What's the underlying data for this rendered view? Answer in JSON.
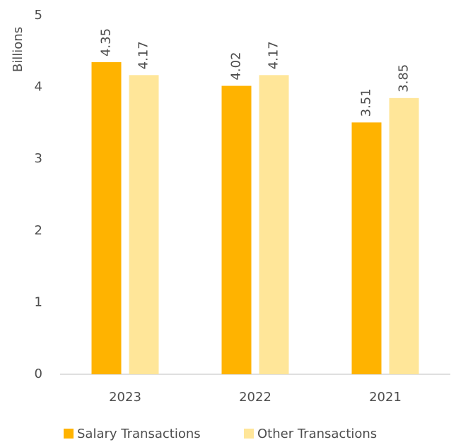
{
  "chart_data": {
    "type": "bar",
    "y_label": "Billions",
    "categories": [
      "2023",
      "2022",
      "2021"
    ],
    "series": [
      {
        "name": "Salary Transactions",
        "color": "#ffb300",
        "values": [
          4.35,
          4.02,
          3.51
        ]
      },
      {
        "name": "Other Transactions",
        "color": "#ffe699",
        "values": [
          4.17,
          4.17,
          3.85
        ]
      }
    ],
    "ylim": [
      0,
      5
    ],
    "yticks": [
      0,
      1,
      2,
      3,
      4,
      5
    ],
    "grid": false,
    "legend": "bottom"
  }
}
